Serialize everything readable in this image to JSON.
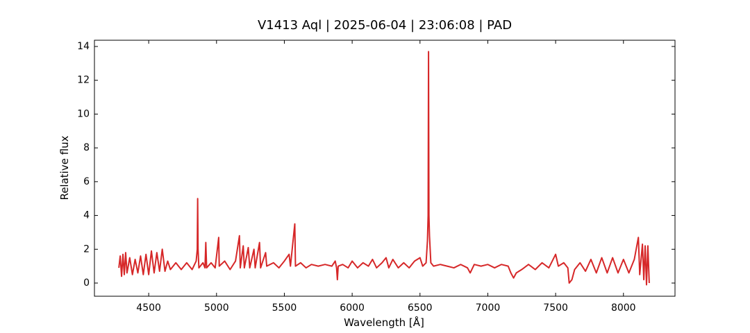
{
  "chart_data": {
    "type": "line",
    "title": "V1413 Aql | 2025-06-04 | 23:06:08 | PAD",
    "x_label": "Wavelength [Å]",
    "y_label": "Relative flux",
    "x": [
      4280,
      4290,
      4300,
      4310,
      4320,
      4330,
      4340,
      4360,
      4380,
      4400,
      4420,
      4440,
      4460,
      4480,
      4500,
      4520,
      4540,
      4560,
      4580,
      4600,
      4620,
      4640,
      4660,
      4700,
      4740,
      4780,
      4820,
      4850,
      4858,
      4861,
      4864,
      4870,
      4900,
      4915,
      4921,
      4927,
      4960,
      4990,
      5016,
      5020,
      5060,
      5100,
      5140,
      5169,
      5175,
      5197,
      5205,
      5234,
      5245,
      5276,
      5285,
      5317,
      5325,
      5362,
      5370,
      5420,
      5460,
      5500,
      5535,
      5545,
      5577,
      5582,
      5620,
      5660,
      5700,
      5750,
      5800,
      5850,
      5875,
      5885,
      5891,
      5897,
      5930,
      5970,
      6000,
      6040,
      6080,
      6120,
      6150,
      6180,
      6220,
      6250,
      6270,
      6300,
      6340,
      6380,
      6420,
      6460,
      6500,
      6520,
      6545,
      6555,
      6560,
      6563,
      6566,
      6570,
      6580,
      6600,
      6650,
      6700,
      6750,
      6800,
      6850,
      6870,
      6900,
      6950,
      7000,
      7050,
      7100,
      7150,
      7170,
      7190,
      7210,
      7250,
      7300,
      7350,
      7400,
      7450,
      7500,
      7520,
      7560,
      7590,
      7600,
      7620,
      7640,
      7680,
      7720,
      7760,
      7800,
      7840,
      7880,
      7920,
      7960,
      8000,
      8040,
      8080,
      8110,
      8120,
      8140,
      8150,
      8160,
      8170,
      8180,
      8190
    ],
    "series": [
      {
        "color": "#d62728",
        "values": [
          0.9,
          1.6,
          0.4,
          1.7,
          0.5,
          1.8,
          0.6,
          1.5,
          0.5,
          1.4,
          0.6,
          1.6,
          0.5,
          1.7,
          0.5,
          1.9,
          0.6,
          1.8,
          0.7,
          2.0,
          0.7,
          1.3,
          0.8,
          1.2,
          0.8,
          1.2,
          0.8,
          1.3,
          2.0,
          5.0,
          2.0,
          0.9,
          1.2,
          0.9,
          2.4,
          0.9,
          1.2,
          0.9,
          2.7,
          1.0,
          1.3,
          0.8,
          1.3,
          2.8,
          0.9,
          2.2,
          0.9,
          2.1,
          0.9,
          2.0,
          0.9,
          2.4,
          0.9,
          1.8,
          1.0,
          1.2,
          0.9,
          1.3,
          1.7,
          1.0,
          3.5,
          1.0,
          1.2,
          0.9,
          1.1,
          1.0,
          1.1,
          1.0,
          1.3,
          0.9,
          0.2,
          1.0,
          1.1,
          0.9,
          1.3,
          0.9,
          1.2,
          1.0,
          1.4,
          0.9,
          1.2,
          1.5,
          0.9,
          1.4,
          0.9,
          1.2,
          0.9,
          1.3,
          1.5,
          1.0,
          1.2,
          2.5,
          4.0,
          13.7,
          4.0,
          2.8,
          1.2,
          1.0,
          1.1,
          1.0,
          0.9,
          1.1,
          0.9,
          0.6,
          1.1,
          1.0,
          1.1,
          0.9,
          1.1,
          1.0,
          0.6,
          0.3,
          0.6,
          0.8,
          1.1,
          0.8,
          1.2,
          0.9,
          1.7,
          1.0,
          1.2,
          0.9,
          0.0,
          0.2,
          0.8,
          1.2,
          0.7,
          1.4,
          0.6,
          1.5,
          0.6,
          1.5,
          0.6,
          1.4,
          0.6,
          1.4,
          2.7,
          0.5,
          2.3,
          0.2,
          2.2,
          -0.1,
          2.2,
          0.0
        ]
      }
    ],
    "xlim": [
      4100,
      8380
    ],
    "ylim": [
      -0.78,
      14.37
    ],
    "xticks": [
      4500,
      5000,
      5500,
      6000,
      6500,
      7000,
      7500,
      8000
    ],
    "yticks": [
      0,
      2,
      4,
      6,
      8,
      10,
      12,
      14
    ]
  }
}
